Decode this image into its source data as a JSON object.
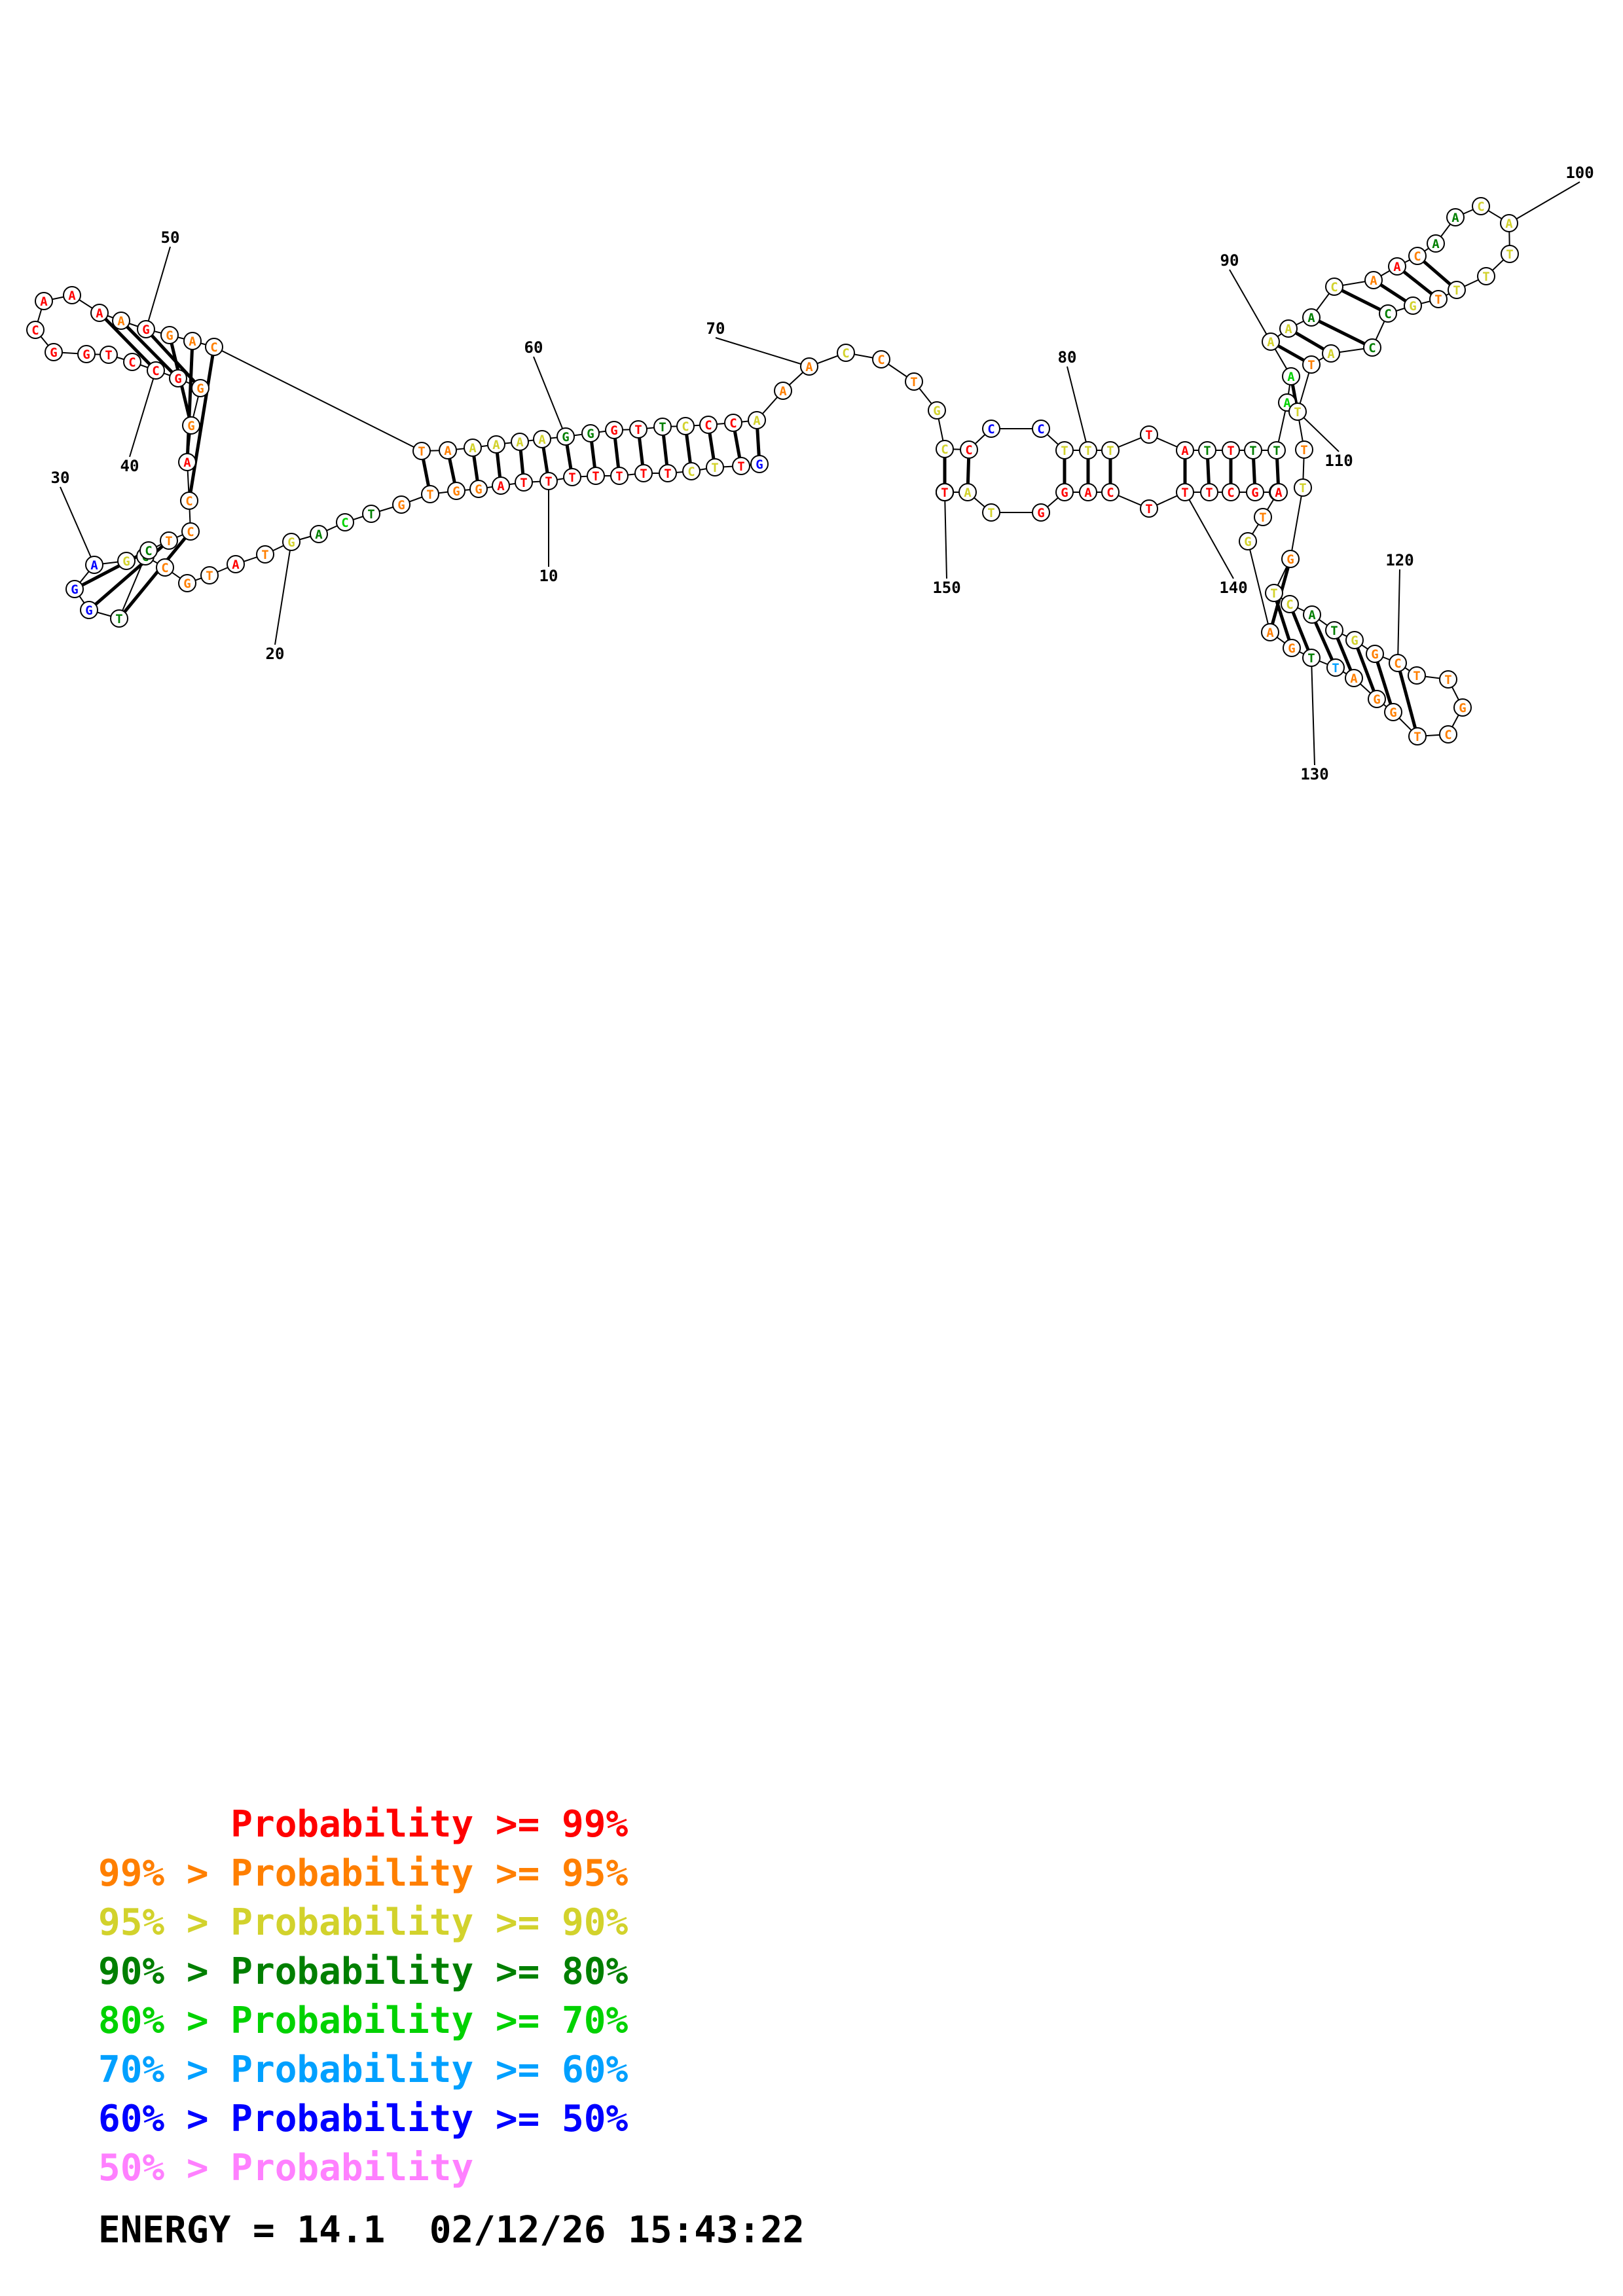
{
  "diagram": {
    "sequence": "GTTCTTTTTTTAGGTGTCAGTATGCCTGGAGCTCCAGGGCCTGGCAAAAGGACTAAAAAGGGTTCCCAAACCTGCCCCTTTTATTTTAAAAACAACAACATTTTGCCATTTTGTCATGGCTTGCTGGATTGAGTTAGCTTTCAGGTAATAATT",
    "colors": {
      "r": "#ff0000",
      "o": "#ff7f00",
      "y": "#d2d22c",
      "g": "#007f00",
      "l": "#00d200",
      "c": "#00a0ff",
      "b": "#0000ff",
      "p": "#ff80ff"
    },
    "position_labels": [
      "10",
      "20",
      "30",
      "40",
      "50",
      "60",
      "70",
      "80",
      "90",
      "100",
      "110",
      "120",
      "130",
      "140",
      "150"
    ]
  },
  "legend": {
    "lines": [
      {
        "text": "      Probability >= 99%",
        "color": "#ff0000"
      },
      {
        "text": "99% > Probability >= 95%",
        "color": "#ff7f00"
      },
      {
        "text": "95% > Probability >= 90%",
        "color": "#d2d22c"
      },
      {
        "text": "90% > Probability >= 80%",
        "color": "#007f00"
      },
      {
        "text": "80% > Probability >= 70%",
        "color": "#00d200"
      },
      {
        "text": "70% > Probability >= 60%",
        "color": "#00a0ff"
      },
      {
        "text": "60% > Probability >= 50%",
        "color": "#0000ff"
      },
      {
        "text": "50% > Probability",
        "color": "#ff80ff"
      }
    ]
  },
  "footer": {
    "energy": "ENERGY = 14.1  02/12/26 15:43:22"
  }
}
